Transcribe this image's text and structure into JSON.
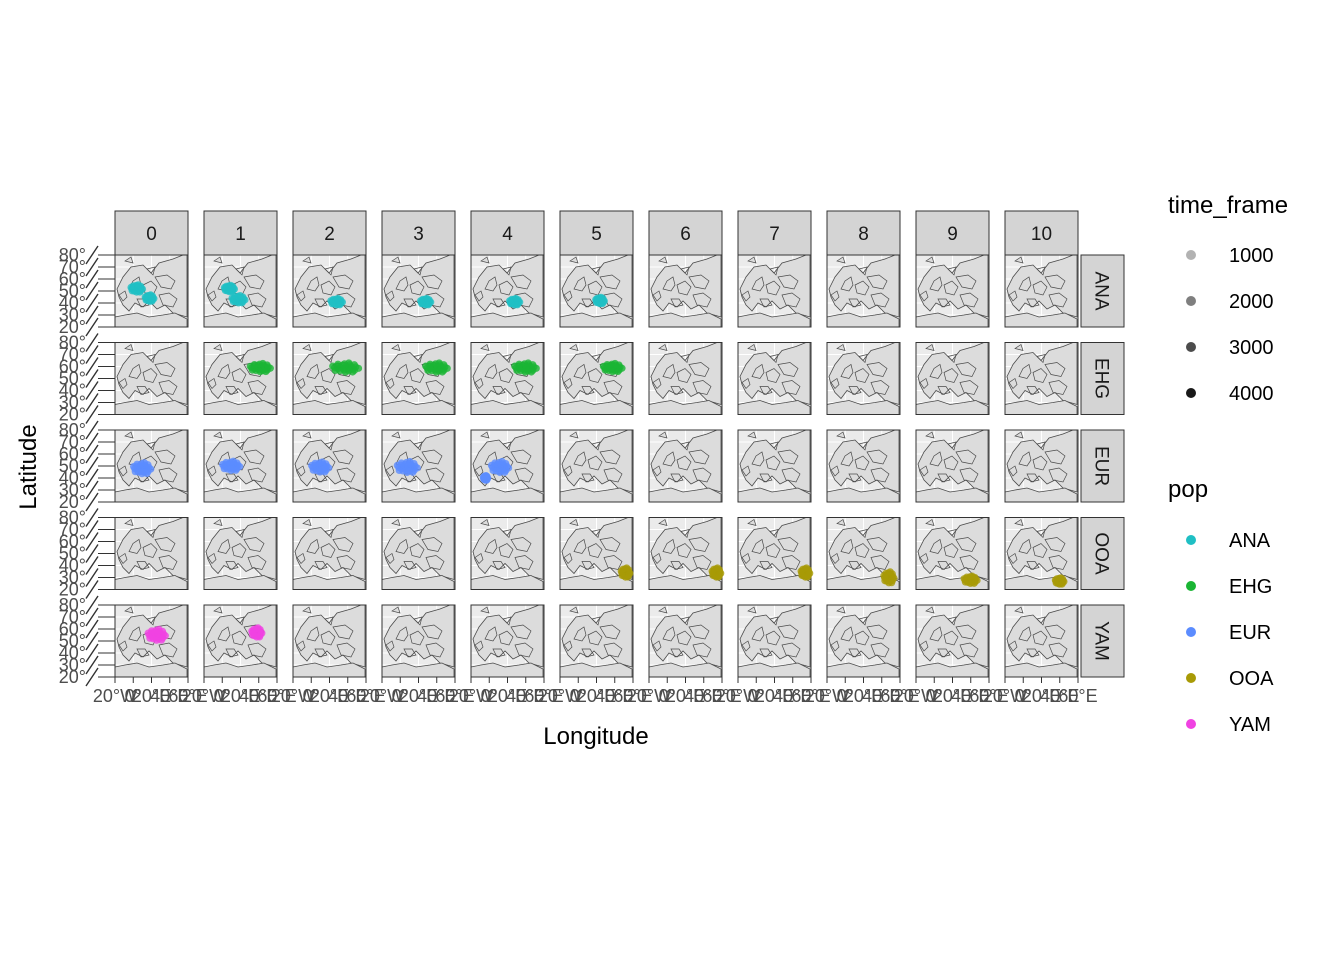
{
  "chart_data": {
    "type": "scatter",
    "subtype": "faceted-map",
    "xlabel": "Longitude",
    "ylabel": "Latitude",
    "facet_columns": [
      "0",
      "1",
      "2",
      "3",
      "4",
      "5",
      "6",
      "7",
      "8",
      "9",
      "10"
    ],
    "facet_rows": [
      "ANA",
      "EHG",
      "EUR",
      "OOA",
      "YAM"
    ],
    "x_ticks": [
      "20°W",
      "0°",
      "20°E",
      "40°E",
      "60°E"
    ],
    "y_ticks": [
      "20°",
      "30°",
      "40°",
      "50°",
      "60°",
      "70°",
      "80°"
    ],
    "xlim": [
      -20,
      60
    ],
    "ylim": [
      20,
      80
    ],
    "grid": true,
    "legend_placement": "right",
    "legends": [
      {
        "title": "time_frame",
        "kind": "alpha",
        "entries": [
          {
            "label": "1000",
            "alpha": 0.3
          },
          {
            "label": "2000",
            "alpha": 0.5
          },
          {
            "label": "3000",
            "alpha": 0.7
          },
          {
            "label": "4000",
            "alpha": 0.9
          }
        ]
      },
      {
        "title": "pop",
        "kind": "color",
        "entries": [
          {
            "label": "ANA",
            "color": "#1fbfc4"
          },
          {
            "label": "EHG",
            "color": "#1ab534"
          },
          {
            "label": "EUR",
            "color": "#5b8cff"
          },
          {
            "label": "OOA",
            "color": "#a89a06"
          },
          {
            "label": "YAM",
            "color": "#f042e2"
          }
        ]
      }
    ],
    "colors": {
      "ANA": "#1fbfc4",
      "EHG": "#1ab534",
      "EUR": "#5b8cff",
      "OOA": "#a89a06",
      "YAM": "#f042e2",
      "land": "#dcdcdc",
      "border": "#4a4a4a",
      "strip": "#d4d4d4"
    },
    "clusters": [
      {
        "pop": "ANA",
        "frame": 0,
        "lon": 4,
        "lat": 52,
        "rx": 8,
        "ry": 4
      },
      {
        "pop": "ANA",
        "frame": 0,
        "lon": 18,
        "lat": 44,
        "rx": 6,
        "ry": 3.5
      },
      {
        "pop": "ANA",
        "frame": 1,
        "lon": 8,
        "lat": 52,
        "rx": 7,
        "ry": 3.5
      },
      {
        "pop": "ANA",
        "frame": 1,
        "lon": 18,
        "lat": 43,
        "rx": 9,
        "ry": 4
      },
      {
        "pop": "ANA",
        "frame": 2,
        "lon": 28,
        "lat": 41,
        "rx": 8,
        "ry": 3.5
      },
      {
        "pop": "ANA",
        "frame": 3,
        "lon": 28,
        "lat": 41,
        "rx": 7,
        "ry": 3.5
      },
      {
        "pop": "ANA",
        "frame": 4,
        "lon": 28,
        "lat": 41,
        "rx": 7,
        "ry": 3.5
      },
      {
        "pop": "ANA",
        "frame": 5,
        "lon": 24,
        "lat": 42,
        "rx": 6,
        "ry": 3.5
      },
      {
        "pop": "EHG",
        "frame": 1,
        "lon": 42,
        "lat": 59,
        "rx": 14,
        "ry": 4.5
      },
      {
        "pop": "EHG",
        "frame": 2,
        "lon": 38,
        "lat": 59,
        "rx": 18,
        "ry": 5
      },
      {
        "pop": "EHG",
        "frame": 3,
        "lon": 40,
        "lat": 59,
        "rx": 15,
        "ry": 5
      },
      {
        "pop": "EHG",
        "frame": 4,
        "lon": 40,
        "lat": 59,
        "rx": 15,
        "ry": 5
      },
      {
        "pop": "EHG",
        "frame": 5,
        "lon": 38,
        "lat": 59,
        "rx": 13,
        "ry": 4.5
      },
      {
        "pop": "EUR",
        "frame": 0,
        "lon": 10,
        "lat": 48,
        "rx": 12,
        "ry": 6
      },
      {
        "pop": "EUR",
        "frame": 1,
        "lon": 10,
        "lat": 50,
        "rx": 12,
        "ry": 5
      },
      {
        "pop": "EUR",
        "frame": 2,
        "lon": 10,
        "lat": 49,
        "rx": 12,
        "ry": 5.5
      },
      {
        "pop": "EUR",
        "frame": 3,
        "lon": 8,
        "lat": 49,
        "rx": 14,
        "ry": 6
      },
      {
        "pop": "EUR",
        "frame": 4,
        "lon": 12,
        "lat": 49,
        "rx": 12,
        "ry": 6
      },
      {
        "pop": "EUR",
        "frame": 4,
        "lon": -4,
        "lat": 40,
        "rx": 3,
        "ry": 2.5
      },
      {
        "pop": "OOA",
        "frame": 5,
        "lon": 52,
        "lat": 34,
        "rx": 6,
        "ry": 5
      },
      {
        "pop": "OOA",
        "frame": 6,
        "lon": 54,
        "lat": 34,
        "rx": 6,
        "ry": 5
      },
      {
        "pop": "OOA",
        "frame": 7,
        "lon": 54,
        "lat": 34,
        "rx": 6,
        "ry": 5
      },
      {
        "pop": "OOA",
        "frame": 8,
        "lon": 48,
        "lat": 30,
        "rx": 7,
        "ry": 6
      },
      {
        "pop": "OOA",
        "frame": 9,
        "lon": 40,
        "lat": 28,
        "rx": 9,
        "ry": 4
      },
      {
        "pop": "OOA",
        "frame": 10,
        "lon": 40,
        "lat": 27,
        "rx": 6,
        "ry": 3.5
      },
      {
        "pop": "YAM",
        "frame": 0,
        "lon": 26,
        "lat": 55,
        "rx": 12,
        "ry": 6
      },
      {
        "pop": "YAM",
        "frame": 1,
        "lon": 38,
        "lat": 57,
        "rx": 7,
        "ry": 5
      }
    ]
  }
}
